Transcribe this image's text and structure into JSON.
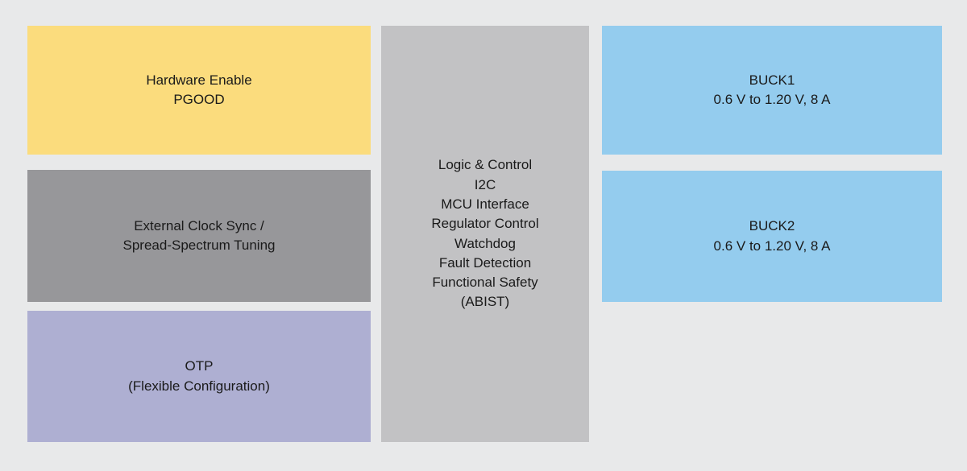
{
  "diagram": {
    "background_color": "#e8e9ea",
    "text_color": "#1a1a1a",
    "blocks": {
      "hardware_enable": {
        "color": "#fbdc7d",
        "lines": [
          "Hardware Enable",
          "PGOOD"
        ]
      },
      "clock_sync": {
        "color": "#97979a",
        "lines": [
          "External Clock Sync /",
          "Spread-Spectrum Tuning"
        ]
      },
      "otp": {
        "color": "#aeafd2",
        "lines": [
          "OTP",
          "(Flexible Configuration)"
        ]
      },
      "logic_control": {
        "color": "#c2c2c4",
        "lines": [
          "Logic & Control",
          "I2C",
          "MCU Interface",
          "Regulator Control",
          "Watchdog",
          "Fault Detection",
          "Functional Safety",
          "(ABIST)"
        ]
      },
      "buck1": {
        "color": "#94ccee",
        "lines": [
          "BUCK1",
          "0.6 V to 1.20 V, 8 A"
        ]
      },
      "buck2": {
        "color": "#94ccee",
        "lines": [
          "BUCK2",
          "0.6 V to 1.20 V, 8 A"
        ]
      }
    }
  }
}
